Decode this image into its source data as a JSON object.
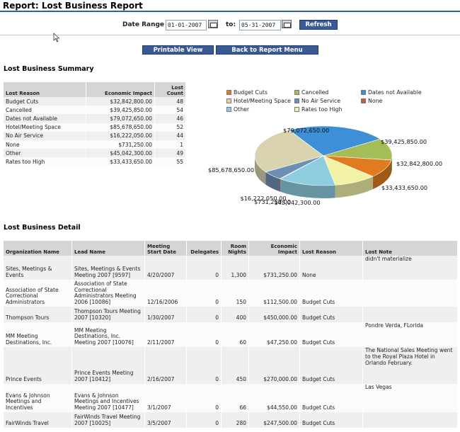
{
  "page": {
    "title": "Report: Lost Business Report"
  },
  "filters": {
    "date_range_label": "Date Range",
    "from_value": "01-01-2007",
    "to_label": "to:",
    "to_value": "05-31-2007",
    "refresh_label": "Refresh"
  },
  "actions": {
    "printable_view": "Printable View",
    "back_to_menu": "Back to Report Menu"
  },
  "summary": {
    "title": "Lost Business Summary",
    "columns": [
      "Lost Reason",
      "Economic Impact",
      "Lost Count"
    ],
    "rows": [
      {
        "reason": "Budget Cuts",
        "impact": "$32,842,800.00",
        "count": "48"
      },
      {
        "reason": "Cancelled",
        "impact": "$39,425,850.00",
        "count": "54"
      },
      {
        "reason": "Dates not Available",
        "impact": "$79,072,650.00",
        "count": "46"
      },
      {
        "reason": "Hotel/Meeting Space",
        "impact": "$85,678,650.00",
        "count": "52"
      },
      {
        "reason": "No Air Service",
        "impact": "$16,222,050.00",
        "count": "44"
      },
      {
        "reason": "None",
        "impact": "$731,250.00",
        "count": "1"
      },
      {
        "reason": "Other",
        "impact": "$45,042,300.00",
        "count": "49"
      },
      {
        "reason": "Rates too High",
        "impact": "$33,433,650.00",
        "count": "55"
      }
    ]
  },
  "chart_data": {
    "type": "pie",
    "legend_position": "top",
    "series": [
      {
        "name": "Budget Cuts",
        "value": 32842800.0,
        "label": "$32,842,800.00",
        "color": "#e07b1f"
      },
      {
        "name": "Cancelled",
        "value": 39425850.0,
        "label": "$39,425,850.00",
        "color": "#a4bd57"
      },
      {
        "name": "Dates not Available",
        "value": 79072650.0,
        "label": "$79,072,650.00",
        "color": "#3d8fd6"
      },
      {
        "name": "Hotel/Meeting Space",
        "value": 85678650.0,
        "label": "$85,678,650.00",
        "color": "#d9d3b0"
      },
      {
        "name": "No Air Service",
        "value": 16222050.0,
        "label": "$16,222,050.00",
        "color": "#6e8fb4"
      },
      {
        "name": "None",
        "value": 731250.0,
        "label": "$731,250.00",
        "color": "#c85a3a"
      },
      {
        "name": "Other",
        "value": 45042300.0,
        "label": "$45,042,300.00",
        "color": "#8ecde0"
      },
      {
        "name": "Rates too High",
        "value": 33433650.0,
        "label": "$33,433,650.00",
        "color": "#f2f2a6"
      }
    ]
  },
  "detail": {
    "title": "Lost Business Detail",
    "columns": [
      "Organization Name",
      "Lead Name",
      "Meeting Start Date",
      "Delegates",
      "Room Nights",
      "Economic Impact",
      "Lost Reason",
      "Lost Note"
    ],
    "rows": [
      {
        "org": "Sites, Meetings & Events",
        "lead": "Sites, Meetings & Events Meeting 2007 [9597]",
        "date": "4/20/2007",
        "delegates": "0",
        "nights": "1,300",
        "impact": "$731,250.00",
        "reason": "None",
        "note": "didn't materialize"
      },
      {
        "org": "Association of State Correctional Administrators",
        "lead": "Association of State Correctional Administrators Meeting 2006 [10086]",
        "date": "12/16/2006",
        "delegates": "0",
        "nights": "150",
        "impact": "$112,500.00",
        "reason": "Budget Cuts",
        "note": ""
      },
      {
        "org": "Thompson Tours",
        "lead": "Thompson Tours Meeting 2007 [10320]",
        "date": "1/30/2007",
        "delegates": "0",
        "nights": "400",
        "impact": "$450,000.00",
        "reason": "Budget Cuts",
        "note": ""
      },
      {
        "org": "MM Meeting Destinations, Inc.",
        "lead": "MM Meeting Destinations, Inc. Meeting 2007 [10076]",
        "date": "2/11/2007",
        "delegates": "0",
        "nights": "60",
        "impact": "$47,250.00",
        "reason": "Budget Cuts",
        "note": "Pondre Verda, FLorida"
      },
      {
        "org": "Prince Events",
        "lead": "Prince Events Meeting 2007 [10412]",
        "date": "2/16/2007",
        "delegates": "0",
        "nights": "450",
        "impact": "$270,000.00",
        "reason": "Budget Cuts",
        "note": "The National Sales Meeting went to the Royal Plaza Hotel in Orlando February."
      },
      {
        "org": "Evans & Johnson Meetings and Incentives",
        "lead": "Evans & Johnson Meetings and Incentives Meeting 2007 [10477]",
        "date": "3/1/2007",
        "delegates": "0",
        "nights": "66",
        "impact": "$44,550.00",
        "reason": "Budget Cuts",
        "note": "Las Vegas"
      },
      {
        "org": "FairWinds Travel",
        "lead": "FairWinds Travel Meeting 2007 [10025]",
        "date": "3/5/2007",
        "delegates": "0",
        "nights": "280",
        "impact": "$247,500.00",
        "reason": "Budget Cuts",
        "note": ""
      }
    ]
  }
}
